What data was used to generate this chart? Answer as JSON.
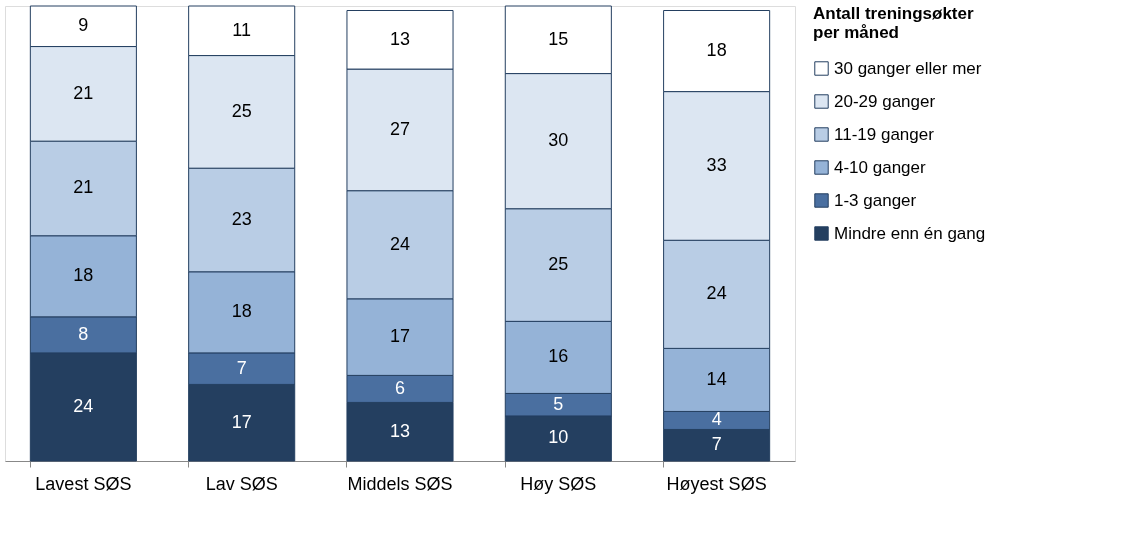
{
  "chart_data": {
    "type": "bar",
    "stacked": true,
    "data_labels": true,
    "grid": false,
    "legend": "right",
    "legend_title": "Antall treningsøkter per måned",
    "categories": [
      "Lavest SØS",
      "Lav SØS",
      "Middels SØS",
      "Høy SØS",
      "Høyest SØS"
    ],
    "series": [
      {
        "name": "Mindre enn én gang",
        "color": "#243f60",
        "values": [
          24,
          17,
          13,
          10,
          7
        ]
      },
      {
        "name": "1-3 ganger",
        "color": "#4a6fa0",
        "values": [
          8,
          7,
          6,
          5,
          4
        ]
      },
      {
        "name": "4-10 ganger",
        "color": "#95b3d7",
        "values": [
          18,
          18,
          17,
          16,
          14
        ]
      },
      {
        "name": "11-19 ganger",
        "color": "#b9cde5",
        "values": [
          21,
          23,
          24,
          25,
          24
        ]
      },
      {
        "name": "20-29 ganger",
        "color": "#dce6f2",
        "values": [
          21,
          25,
          27,
          30,
          33
        ]
      },
      {
        "name": "30 ganger eller mer",
        "color": "#ffffff",
        "values": [
          9,
          11,
          13,
          15,
          18
        ]
      }
    ]
  }
}
